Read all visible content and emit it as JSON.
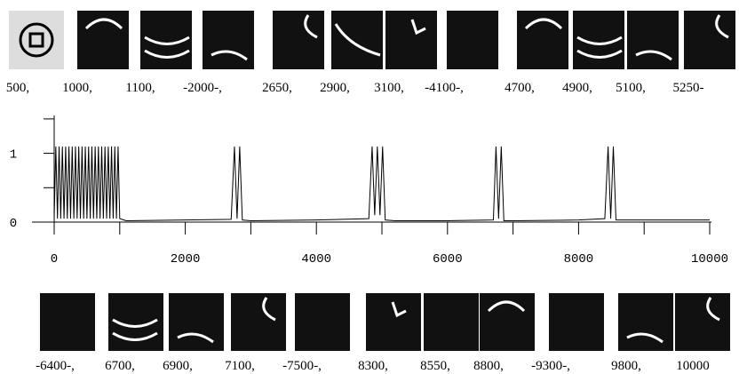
{
  "top_labels": [
    "500,",
    "1000,",
    "1100,",
    "-2000-,",
    "2650,",
    "2900,",
    "3100,",
    "-4100-,",
    "4700,",
    "4900,",
    "5100,",
    "5250-"
  ],
  "bottom_labels": [
    "-6400-,",
    "6700,",
    "6900,",
    "7100,",
    "-7500-,",
    "8300,",
    "8550,",
    "8800,",
    "-9300-,",
    "9800,",
    "10000"
  ],
  "chart_data": {
    "type": "line",
    "x": [
      0,
      25,
      50,
      75,
      100,
      125,
      150,
      175,
      200,
      225,
      250,
      275,
      300,
      325,
      350,
      375,
      400,
      425,
      450,
      475,
      500,
      525,
      550,
      575,
      600,
      625,
      650,
      675,
      700,
      725,
      750,
      775,
      800,
      825,
      850,
      875,
      900,
      925,
      950,
      975,
      1000,
      1100,
      2000,
      2700,
      2750,
      2790,
      2830,
      2870,
      3000,
      4000,
      4800,
      4850,
      4890,
      4930,
      4970,
      5010,
      5050,
      5200,
      6000,
      6700,
      6740,
      6780,
      6820,
      6860,
      7000,
      8000,
      8400,
      8450,
      8490,
      8530,
      8570,
      8700,
      10000
    ],
    "series": [
      {
        "color": "#000000",
        "values": [
          0.05,
          1.1,
          0.05,
          1.1,
          0.05,
          1.1,
          0.05,
          1.1,
          0.05,
          1.1,
          0.05,
          1.1,
          0.05,
          1.1,
          0.05,
          1.1,
          0.05,
          1.1,
          0.05,
          1.1,
          0.05,
          1.1,
          0.05,
          1.1,
          0.05,
          1.1,
          0.05,
          1.1,
          0.05,
          1.1,
          0.05,
          1.1,
          0.05,
          1.1,
          0.05,
          1.1,
          0.05,
          1.1,
          0.05,
          1.1,
          0.05,
          0.02,
          0.03,
          0.04,
          1.1,
          0.05,
          1.1,
          0.03,
          0.02,
          0.03,
          0.05,
          1.1,
          0.1,
          1.1,
          0.1,
          1.1,
          0.03,
          0.02,
          0.02,
          0.03,
          1.1,
          0.05,
          1.1,
          0.02,
          0.02,
          0.03,
          0.05,
          1.1,
          0.05,
          1.1,
          0.03,
          0.03,
          0.03
        ]
      }
    ],
    "xlim": [
      0,
      10000
    ],
    "xticks": [
      0,
      2000,
      4000,
      6000,
      8000,
      10000
    ],
    "xminor_ticks": [
      1000,
      3000,
      5000,
      7000,
      9000
    ],
    "ylim": [
      0,
      1.55
    ],
    "yticks": [
      0,
      1
    ],
    "yminor_ticks": [
      0.5,
      1.5
    ]
  }
}
